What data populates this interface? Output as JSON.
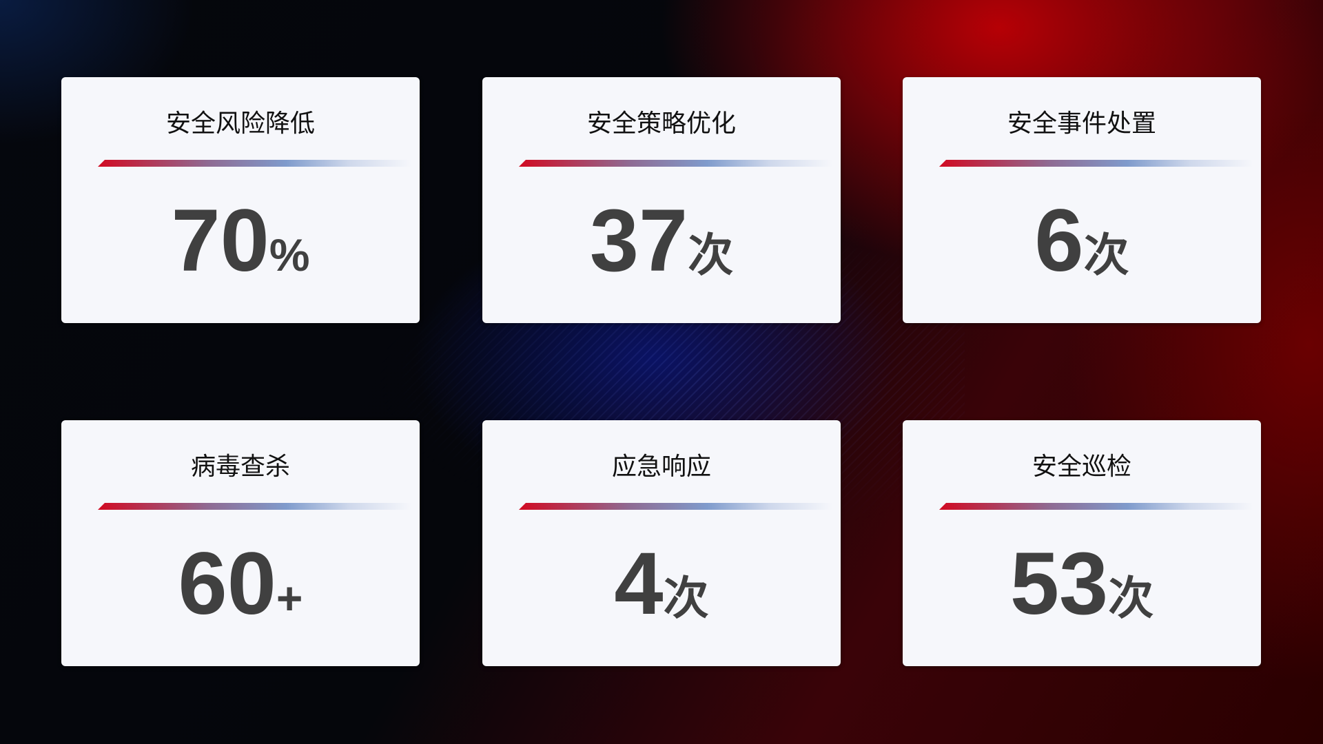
{
  "cards": [
    {
      "title": "安全风险降低",
      "value": "70",
      "unit": "%"
    },
    {
      "title": "安全策略优化",
      "value": "37",
      "unit": "次"
    },
    {
      "title": "安全事件处置",
      "value": "6",
      "unit": "次"
    },
    {
      "title": "病毒查杀",
      "value": "60",
      "unit": "+"
    },
    {
      "title": "应急响应",
      "value": "4",
      "unit": "次"
    },
    {
      "title": "安全巡检",
      "value": "53",
      "unit": "次"
    }
  ],
  "colors": {
    "accent_red": "#d10a22",
    "accent_blue": "#7f9bcc",
    "card_bg": "#f6f7fb",
    "value_text": "#404040"
  }
}
